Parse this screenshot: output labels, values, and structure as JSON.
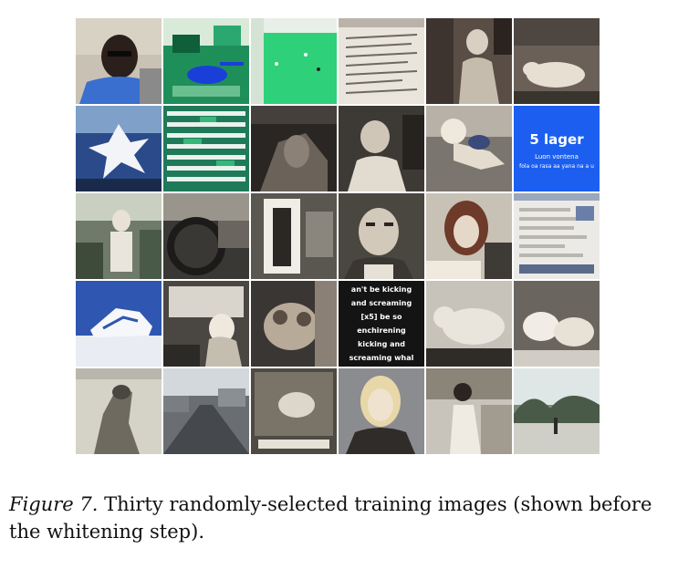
{
  "figure": {
    "caption_label": "Figure 7.",
    "caption_text": " Thirty randomly-selected training images (shown before the whitening step)."
  },
  "tiles": [
    {
      "row": 1,
      "col": 1,
      "alt": "man portrait"
    },
    {
      "row": 1,
      "col": 2,
      "alt": "helicopter"
    },
    {
      "row": 1,
      "col": 3,
      "alt": "green field"
    },
    {
      "row": 1,
      "col": 4,
      "alt": "document text"
    },
    {
      "row": 1,
      "col": 5,
      "alt": "person sitting"
    },
    {
      "row": 1,
      "col": 6,
      "alt": "animal"
    },
    {
      "row": 2,
      "col": 1,
      "alt": "explosion"
    },
    {
      "row": 2,
      "col": 2,
      "alt": "green spreadsheet"
    },
    {
      "row": 2,
      "col": 3,
      "alt": "dark scene"
    },
    {
      "row": 2,
      "col": 4,
      "alt": "people"
    },
    {
      "row": 2,
      "col": 5,
      "alt": "person arm"
    },
    {
      "row": 2,
      "col": 6,
      "alt": "blue title card",
      "text_title": "5 lager",
      "text_line1": "Luon vontena",
      "text_line2": "fola oa rasa aa yana na a u"
    },
    {
      "row": 3,
      "col": 1,
      "alt": "man outdoors"
    },
    {
      "row": 3,
      "col": 2,
      "alt": "steering wheel"
    },
    {
      "row": 3,
      "col": 3,
      "alt": "doorway"
    },
    {
      "row": 3,
      "col": 4,
      "alt": "man face"
    },
    {
      "row": 3,
      "col": 5,
      "alt": "woman"
    },
    {
      "row": 3,
      "col": 6,
      "alt": "web page"
    },
    {
      "row": 4,
      "col": 1,
      "alt": "shoe"
    },
    {
      "row": 4,
      "col": 2,
      "alt": "car interior"
    },
    {
      "row": 4,
      "col": 3,
      "alt": "dog"
    },
    {
      "row": 4,
      "col": 4,
      "alt": "text caption",
      "caption_lines": [
        "an't be kicking",
        "and screaming",
        "[x5] be so",
        "enchirening",
        "kicking and",
        "screaming whal"
      ]
    },
    {
      "row": 4,
      "col": 5,
      "alt": "cat"
    },
    {
      "row": 4,
      "col": 6,
      "alt": "kittens"
    },
    {
      "row": 5,
      "col": 1,
      "alt": "horse"
    },
    {
      "row": 5,
      "col": 2,
      "alt": "street"
    },
    {
      "row": 5,
      "col": 3,
      "alt": "dog scene"
    },
    {
      "row": 5,
      "col": 4,
      "alt": "woman news anchor"
    },
    {
      "row": 5,
      "col": 5,
      "alt": "woman walking"
    },
    {
      "row": 5,
      "col": 6,
      "alt": "road with trees"
    }
  ]
}
